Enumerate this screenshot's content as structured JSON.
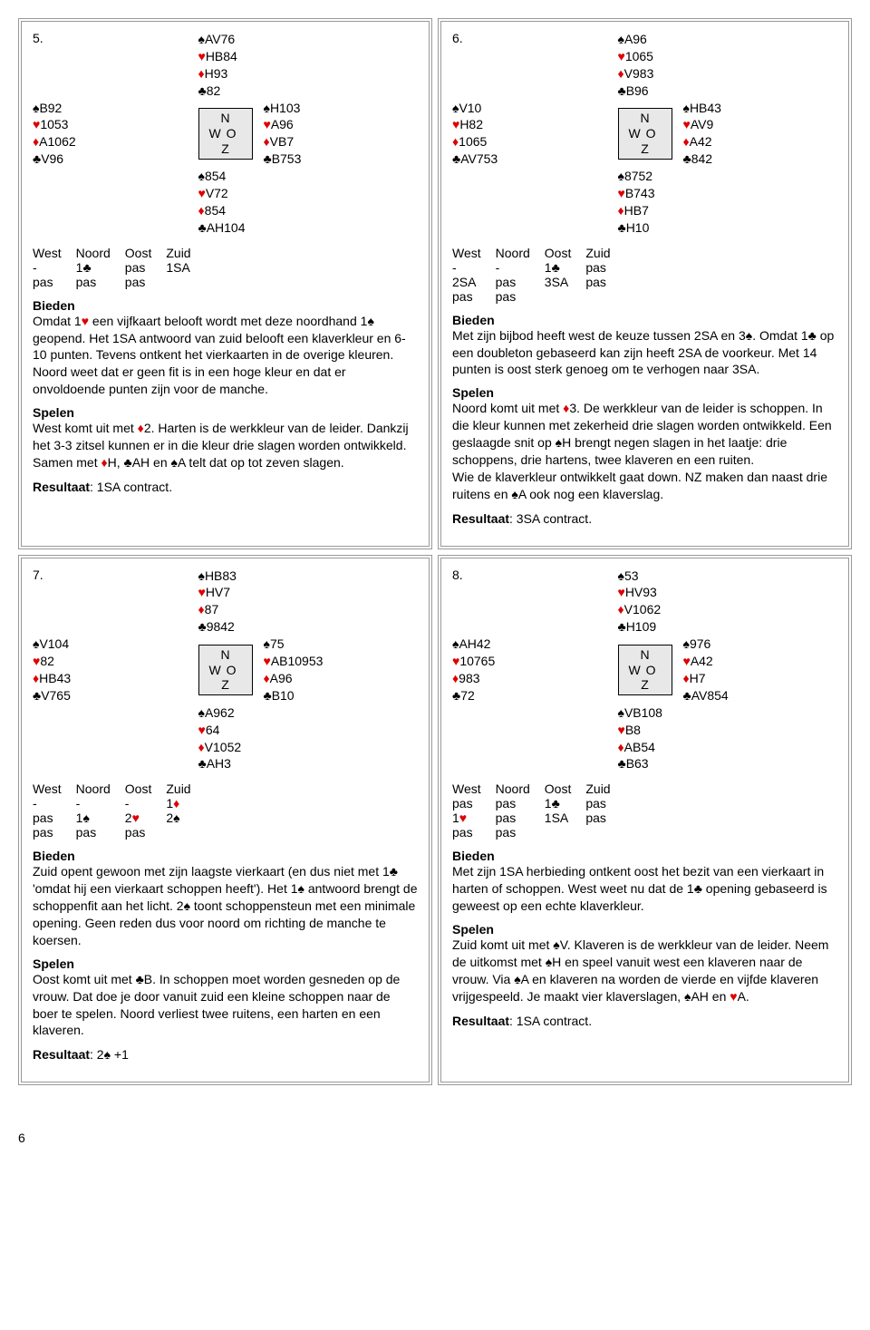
{
  "suits": {
    "spade": "♠",
    "heart": "♥",
    "diamond": "♦",
    "club": "♣"
  },
  "suit_colors": {
    "spade": "#000000",
    "heart": "#dd0000",
    "diamond": "#dd0000",
    "club": "#000000"
  },
  "compass": {
    "n": "N",
    "w": "W",
    "o": "O",
    "z": "Z"
  },
  "bidheader": [
    "West",
    "Noord",
    "Oost",
    "Zuid"
  ],
  "labels": {
    "bieden": "Bieden",
    "spelen": "Spelen",
    "resultaat": "Resultaat"
  },
  "page_number": "6",
  "deals": [
    {
      "num": "5.",
      "hands": {
        "N": {
          "s": "AV76",
          "h": "HB84",
          "d": "H93",
          "c": "82"
        },
        "W": {
          "s": "B92",
          "h": "1053",
          "d": "A1062",
          "c": "V96"
        },
        "E": {
          "s": "H103",
          "h": "A96",
          "d": "VB7",
          "c": "B753"
        },
        "S": {
          "s": "854",
          "h": "V72",
          "d": "854",
          "c": "AH104"
        }
      },
      "bidding": [
        [
          "-",
          [
            {
              "t": "1"
            },
            {
              "suit": "club"
            }
          ],
          "pas",
          "1SA"
        ],
        [
          "pas",
          "pas",
          "pas",
          ""
        ]
      ],
      "bieden": [
        {
          "t": "Omdat 1"
        },
        {
          "suit": "heart"
        },
        {
          "t": " een vijfkaart belooft wordt met deze noordhand 1"
        },
        {
          "suit": "spade"
        },
        {
          "t": " geopend. Het 1SA antwoord van zuid belooft een klaverkleur en 6-10 punten. Tevens ontkent het vierkaarten in de overige kleuren. Noord weet dat er geen fit is in een hoge kleur en dat er onvoldoende punten zijn voor de manche."
        }
      ],
      "spelen": [
        {
          "t": "West komt uit met "
        },
        {
          "suit": "diamond"
        },
        {
          "t": "2. Harten is de werkkleur van de leider. Dankzij het 3-3 zitsel kunnen er in die kleur drie slagen worden ontwikkeld. Samen met "
        },
        {
          "suit": "diamond"
        },
        {
          "t": "H, "
        },
        {
          "suit": "club"
        },
        {
          "t": "AH en "
        },
        {
          "suit": "spade"
        },
        {
          "t": "A telt dat op tot zeven slagen."
        }
      ],
      "resultaat": [
        {
          "t": ": 1SA contract."
        }
      ]
    },
    {
      "num": "6.",
      "hands": {
        "N": {
          "s": "A96",
          "h": "1065",
          "d": "V983",
          "c": "B96"
        },
        "W": {
          "s": "V10",
          "h": "H82",
          "d": "1065",
          "c": "AV753"
        },
        "E": {
          "s": "HB43",
          "h": "AV9",
          "d": "A42",
          "c": "842"
        },
        "S": {
          "s": "8752",
          "h": "B743",
          "d": "HB7",
          "c": "H10"
        }
      },
      "bidding": [
        [
          "-",
          "-",
          [
            {
              "t": "1"
            },
            {
              "suit": "club"
            }
          ],
          "pas"
        ],
        [
          "2SA",
          "pas",
          "3SA",
          "pas"
        ],
        [
          "pas",
          "pas",
          "",
          ""
        ]
      ],
      "bieden": [
        {
          "t": "Met zijn bijbod heeft west de keuze tussen 2SA en 3"
        },
        {
          "suit": "spade"
        },
        {
          "t": ". Omdat 1"
        },
        {
          "suit": "club"
        },
        {
          "t": " op een doubleton gebaseerd kan zijn heeft 2SA de voorkeur. Met 14 punten is oost sterk genoeg om te verhogen naar 3SA."
        }
      ],
      "spelen": [
        {
          "t": "Noord komt uit met "
        },
        {
          "suit": "diamond"
        },
        {
          "t": "3. De werkkleur van de leider is schoppen. In die kleur kunnen met zekerheid drie slagen worden ontwikkeld. Een geslaagde snit op "
        },
        {
          "suit": "spade"
        },
        {
          "t": "H brengt negen slagen in het laatje: drie schoppens, drie hartens, twee klaveren en een ruiten."
        },
        {
          "br": true
        },
        {
          "t": "Wie de klaverkleur ontwikkelt gaat down. NZ maken dan naast drie ruitens en "
        },
        {
          "suit": "spade"
        },
        {
          "t": "A ook nog een klaverslag."
        }
      ],
      "resultaat": [
        {
          "t": ": 3SA contract."
        }
      ]
    },
    {
      "num": "7.",
      "hands": {
        "N": {
          "s": "HB83",
          "h": "HV7",
          "d": "87",
          "c": "9842"
        },
        "W": {
          "s": "V104",
          "h": "82",
          "d": "HB43",
          "c": "V765"
        },
        "E": {
          "s": "75",
          "h": "AB10953",
          "d": "A96",
          "c": "B10"
        },
        "S": {
          "s": "A962",
          "h": "64",
          "d": "V1052",
          "c": "AH3"
        }
      },
      "bidding": [
        [
          "-",
          "-",
          "-",
          [
            {
              "t": "1"
            },
            {
              "suit": "diamond"
            }
          ]
        ],
        [
          "pas",
          [
            {
              "t": "1"
            },
            {
              "suit": "spade"
            }
          ],
          [
            {
              "t": "2"
            },
            {
              "suit": "heart"
            }
          ],
          [
            {
              "t": "2"
            },
            {
              "suit": "spade"
            }
          ]
        ],
        [
          "pas",
          "pas",
          "pas",
          ""
        ]
      ],
      "bieden": [
        {
          "t": "Zuid opent gewoon met zijn laagste vierkaart (en dus niet met 1"
        },
        {
          "suit": "club"
        },
        {
          "t": " 'omdat hij een vierkaart schoppen heeft'). Het 1"
        },
        {
          "suit": "spade"
        },
        {
          "t": " antwoord brengt de schoppenfit aan het licht. 2"
        },
        {
          "suit": "spade"
        },
        {
          "t": " toont schoppensteun met een minimale opening. Geen reden dus voor noord om richting de manche te koersen."
        }
      ],
      "spelen": [
        {
          "t": "Oost komt uit met "
        },
        {
          "suit": "club"
        },
        {
          "t": "B. In schoppen moet worden gesneden op de vrouw. Dat doe je door vanuit zuid een kleine schoppen naar de boer te spelen. Noord verliest twee ruitens, een harten en een klaveren."
        }
      ],
      "resultaat": [
        {
          "t": ": 2"
        },
        {
          "suit": "spade"
        },
        {
          "t": " +1"
        }
      ]
    },
    {
      "num": "8.",
      "hands": {
        "N": {
          "s": "53",
          "h": "HV93",
          "d": "V1062",
          "c": "H109"
        },
        "W": {
          "s": "AH42",
          "h": "10765",
          "d": "983",
          "c": "72"
        },
        "E": {
          "s": "976",
          "h": "A42",
          "d": "H7",
          "c": "AV854"
        },
        "S": {
          "s": "VB108",
          "h": "B8",
          "d": "AB54",
          "c": "B63"
        }
      },
      "bidding": [
        [
          "pas",
          "pas",
          [
            {
              "t": "1"
            },
            {
              "suit": "club"
            }
          ],
          "pas"
        ],
        [
          [
            {
              "t": "1"
            },
            {
              "suit": "heart"
            }
          ],
          "pas",
          "1SA",
          "pas"
        ],
        [
          "pas",
          "pas",
          "",
          ""
        ]
      ],
      "bieden": [
        {
          "t": "Met zijn 1SA herbieding ontkent oost het bezit van een vierkaart in harten of schoppen. West weet nu dat de 1"
        },
        {
          "suit": "club"
        },
        {
          "t": " opening gebaseerd is geweest op een echte klaverkleur."
        }
      ],
      "spelen": [
        {
          "t": "Zuid komt uit met "
        },
        {
          "suit": "spade"
        },
        {
          "t": "V. Klaveren is de werkkleur van de leider. Neem de uitkomst met "
        },
        {
          "suit": "spade"
        },
        {
          "t": "H en speel vanuit west een klaveren naar de vrouw. Via "
        },
        {
          "suit": "spade"
        },
        {
          "t": "A en klaveren na worden de vierde en vijfde klaveren vrijgespeeld. Je maakt vier klaverslagen, "
        },
        {
          "suit": "spade"
        },
        {
          "t": "AH en "
        },
        {
          "suit": "heart"
        },
        {
          "t": "A."
        }
      ],
      "resultaat": [
        {
          "t": ": 1SA contract."
        }
      ]
    }
  ]
}
